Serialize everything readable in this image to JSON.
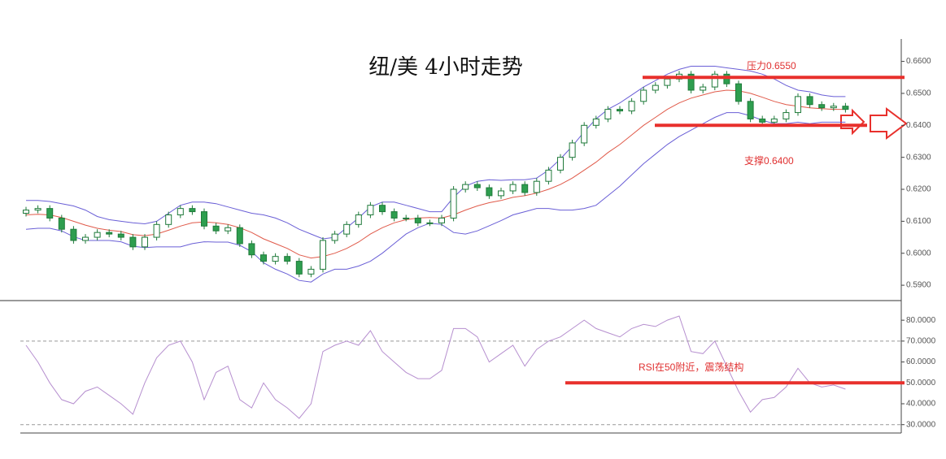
{
  "chart_data": [
    {
      "type": "candlestick",
      "title": "纽/美 4小时走势",
      "up_color": "#ffffff",
      "down_color": "#2e9e4f",
      "edge_color": "#1f7a3a",
      "open": [
        0.6125,
        0.6135,
        0.614,
        0.611,
        0.6075,
        0.604,
        0.605,
        0.6065,
        0.606,
        0.605,
        0.602,
        0.605,
        0.609,
        0.612,
        0.614,
        0.613,
        0.6085,
        0.607,
        0.608,
        0.603,
        0.5995,
        0.5975,
        0.599,
        0.5975,
        0.5935,
        0.595,
        0.604,
        0.606,
        0.609,
        0.612,
        0.615,
        0.613,
        0.611,
        0.611,
        0.6095,
        0.6095,
        0.611,
        0.62,
        0.6215,
        0.6205,
        0.618,
        0.6195,
        0.6215,
        0.619,
        0.6225,
        0.626,
        0.63,
        0.6345,
        0.64,
        0.642,
        0.645,
        0.6445,
        0.6475,
        0.651,
        0.6525,
        0.6545,
        0.656,
        0.651,
        0.652,
        0.656,
        0.653,
        0.6475,
        0.642,
        0.641,
        0.642,
        0.644,
        0.649,
        0.6465,
        0.6455,
        0.646
      ],
      "high": [
        0.6145,
        0.615,
        0.615,
        0.612,
        0.6085,
        0.606,
        0.6075,
        0.6075,
        0.607,
        0.606,
        0.606,
        0.61,
        0.613,
        0.615,
        0.615,
        0.614,
        0.6095,
        0.609,
        0.609,
        0.604,
        0.6005,
        0.6,
        0.6,
        0.5985,
        0.596,
        0.605,
        0.607,
        0.61,
        0.613,
        0.616,
        0.616,
        0.614,
        0.612,
        0.612,
        0.6105,
        0.612,
        0.621,
        0.6225,
        0.6225,
        0.6215,
        0.6205,
        0.6225,
        0.6225,
        0.6235,
        0.627,
        0.631,
        0.6355,
        0.641,
        0.643,
        0.646,
        0.646,
        0.6485,
        0.652,
        0.6535,
        0.6555,
        0.657,
        0.657,
        0.653,
        0.657,
        0.657,
        0.654,
        0.6485,
        0.643,
        0.643,
        0.645,
        0.65,
        0.65,
        0.6475,
        0.647,
        0.647
      ],
      "low": [
        0.6115,
        0.6125,
        0.61,
        0.6065,
        0.603,
        0.603,
        0.604,
        0.605,
        0.604,
        0.601,
        0.601,
        0.604,
        0.608,
        0.611,
        0.612,
        0.6075,
        0.606,
        0.606,
        0.602,
        0.5985,
        0.5965,
        0.5965,
        0.5965,
        0.5925,
        0.5925,
        0.594,
        0.603,
        0.605,
        0.608,
        0.611,
        0.612,
        0.61,
        0.61,
        0.6085,
        0.6085,
        0.6085,
        0.61,
        0.619,
        0.6195,
        0.617,
        0.617,
        0.6185,
        0.618,
        0.618,
        0.6215,
        0.625,
        0.629,
        0.6335,
        0.639,
        0.641,
        0.6435,
        0.6435,
        0.6465,
        0.65,
        0.6515,
        0.6535,
        0.65,
        0.65,
        0.651,
        0.652,
        0.6465,
        0.641,
        0.64,
        0.64,
        0.641,
        0.643,
        0.6455,
        0.6445,
        0.6445,
        0.644
      ],
      "close": [
        0.6135,
        0.614,
        0.611,
        0.6075,
        0.604,
        0.605,
        0.6065,
        0.606,
        0.605,
        0.602,
        0.605,
        0.609,
        0.612,
        0.614,
        0.613,
        0.6085,
        0.607,
        0.608,
        0.603,
        0.5995,
        0.5975,
        0.599,
        0.5975,
        0.5935,
        0.595,
        0.604,
        0.606,
        0.609,
        0.612,
        0.615,
        0.613,
        0.611,
        0.611,
        0.6095,
        0.6095,
        0.611,
        0.62,
        0.6215,
        0.6205,
        0.618,
        0.6195,
        0.6215,
        0.619,
        0.6225,
        0.626,
        0.63,
        0.6345,
        0.64,
        0.642,
        0.645,
        0.6445,
        0.6475,
        0.651,
        0.6525,
        0.6545,
        0.656,
        0.651,
        0.652,
        0.656,
        0.653,
        0.6475,
        0.642,
        0.641,
        0.642,
        0.644,
        0.649,
        0.6465,
        0.6455,
        0.646,
        0.645
      ],
      "overlays": [
        {
          "color": "#e05a4a",
          "values": [
            0.612,
            0.6122,
            0.612,
            0.6112,
            0.61,
            0.6088,
            0.6078,
            0.6072,
            0.6068,
            0.6058,
            0.6055,
            0.606,
            0.6072,
            0.6085,
            0.6095,
            0.6098,
            0.6095,
            0.609,
            0.608,
            0.6065,
            0.6045,
            0.603,
            0.6015,
            0.5995,
            0.5985,
            0.599,
            0.6,
            0.6015,
            0.6035,
            0.606,
            0.608,
            0.6095,
            0.6105,
            0.611,
            0.6112,
            0.611,
            0.612,
            0.6135,
            0.6148,
            0.6158,
            0.6165,
            0.6175,
            0.618,
            0.6188,
            0.62,
            0.6215,
            0.6235,
            0.626,
            0.6285,
            0.6315,
            0.634,
            0.637,
            0.64,
            0.6425,
            0.645,
            0.647,
            0.6485,
            0.6495,
            0.6505,
            0.651,
            0.6508,
            0.65,
            0.6488,
            0.6475,
            0.6465,
            0.646,
            0.6455,
            0.6452,
            0.645,
            0.645
          ]
        },
        {
          "color": "#6a5fd6",
          "values": [
            0.6165,
            0.6165,
            0.6162,
            0.6155,
            0.6148,
            0.6135,
            0.6115,
            0.6105,
            0.61,
            0.6095,
            0.6092,
            0.61,
            0.6125,
            0.615,
            0.616,
            0.616,
            0.6155,
            0.6145,
            0.6135,
            0.6125,
            0.612,
            0.611,
            0.6095,
            0.6075,
            0.606,
            0.6045,
            0.605,
            0.608,
            0.611,
            0.6145,
            0.616,
            0.616,
            0.615,
            0.614,
            0.613,
            0.613,
            0.6175,
            0.621,
            0.6225,
            0.623,
            0.6228,
            0.623,
            0.623,
            0.6235,
            0.626,
            0.6295,
            0.6335,
            0.638,
            0.642,
            0.645,
            0.647,
            0.6495,
            0.652,
            0.654,
            0.656,
            0.6575,
            0.6585,
            0.6585,
            0.6585,
            0.658,
            0.6575,
            0.657,
            0.656,
            0.6545,
            0.6525,
            0.651,
            0.6505,
            0.6495,
            0.649,
            0.649
          ]
        },
        {
          "color": "#6a5fd6",
          "values": [
            0.6075,
            0.6078,
            0.6078,
            0.607,
            0.6052,
            0.604,
            0.604,
            0.604,
            0.6036,
            0.6022,
            0.6018,
            0.602,
            0.602,
            0.602,
            0.603,
            0.6036,
            0.6035,
            0.6035,
            0.6025,
            0.6005,
            0.597,
            0.595,
            0.5935,
            0.5915,
            0.591,
            0.5935,
            0.595,
            0.595,
            0.596,
            0.5975,
            0.6,
            0.603,
            0.606,
            0.608,
            0.6094,
            0.609,
            0.6065,
            0.606,
            0.607,
            0.6086,
            0.6102,
            0.612,
            0.613,
            0.614,
            0.614,
            0.6135,
            0.6135,
            0.614,
            0.615,
            0.618,
            0.621,
            0.6245,
            0.628,
            0.631,
            0.634,
            0.6365,
            0.6385,
            0.6405,
            0.6425,
            0.644,
            0.644,
            0.643,
            0.6416,
            0.6405,
            0.6405,
            0.641,
            0.6405,
            0.641,
            0.641,
            0.641
          ]
        }
      ],
      "levels": [
        {
          "label": "压力0.6550",
          "value": 0.655,
          "color": "#e8302c"
        },
        {
          "label": "支撑0.6400",
          "value": 0.64,
          "color": "#e8302c"
        }
      ],
      "ylim": [
        0.5885,
        0.6665
      ],
      "yticks": [
        {
          "value": 0.59,
          "label": "0.5900"
        },
        {
          "value": 0.6,
          "label": "0.6000"
        },
        {
          "value": 0.61,
          "label": "0.6100"
        },
        {
          "value": 0.62,
          "label": "0.6200"
        },
        {
          "value": 0.63,
          "label": "0.6300"
        },
        {
          "value": 0.64,
          "label": "0.6400"
        },
        {
          "value": 0.65,
          "label": "0.6500"
        },
        {
          "value": 0.66,
          "label": "0.6600"
        }
      ]
    },
    {
      "type": "line",
      "color": "#b68fcf",
      "values": [
        68,
        60,
        50,
        42,
        40,
        46,
        48,
        44,
        40,
        35,
        50,
        62,
        68,
        70,
        60,
        42,
        55,
        58,
        42,
        38,
        50,
        42,
        38,
        33,
        40,
        65,
        68,
        70,
        68,
        75,
        65,
        60,
        55,
        52,
        52,
        56,
        76,
        76,
        72,
        60,
        64,
        68,
        58,
        66,
        70,
        72,
        76,
        80,
        76,
        74,
        72,
        76,
        78,
        77,
        80,
        82,
        65,
        64,
        70,
        58,
        46,
        36,
        42,
        43,
        48,
        57,
        50,
        48,
        49,
        47
      ],
      "bands": [
        30,
        70
      ],
      "levels": [
        {
          "label": "RSI在50附近，震荡结构",
          "value": 50,
          "color": "#e8302c"
        }
      ],
      "ylim": [
        26,
        89
      ],
      "yticks": [
        {
          "value": 30,
          "label": "30.0000"
        },
        {
          "value": 40,
          "label": "40.0000"
        },
        {
          "value": 50,
          "label": "50.0000"
        },
        {
          "value": 60,
          "label": "60.0000"
        },
        {
          "value": 70,
          "label": "70.0000"
        },
        {
          "value": 80,
          "label": "80.0000"
        }
      ]
    }
  ]
}
